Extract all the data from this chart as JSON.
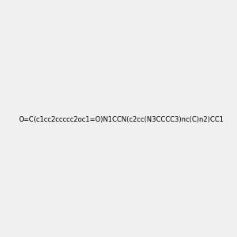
{
  "smiles": "O=C(c1cc2ccccc2oc1=O)N1CCN(c2cc(N3CCCC3)nc(C)n2)CC1",
  "title": "",
  "background_color": "#f0f0f0",
  "bond_color": "#000000",
  "heteroatom_colors": {
    "N": "#0000ff",
    "O": "#ff0000"
  },
  "figsize": [
    3.0,
    3.0
  ],
  "dpi": 100
}
